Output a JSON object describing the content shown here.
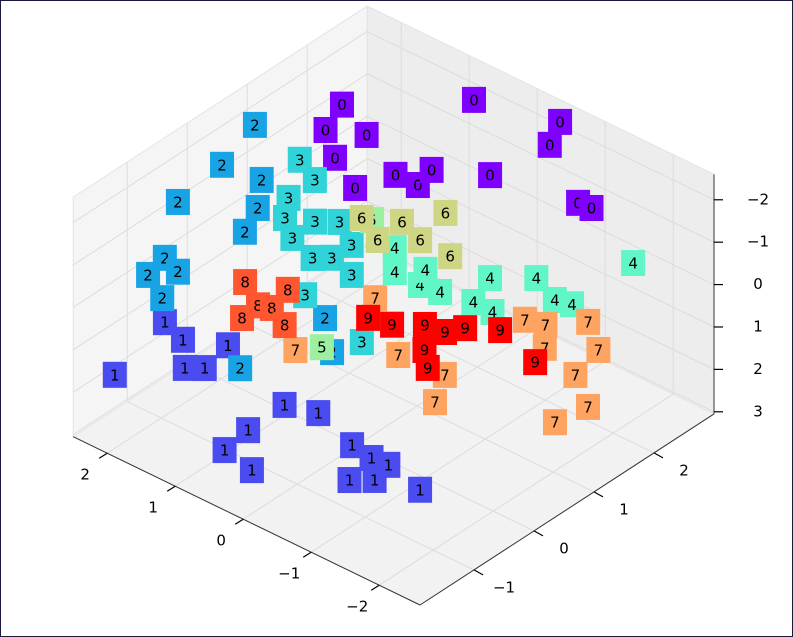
{
  "chart_data": {
    "type": "scatter3d",
    "xlim": [
      -2.6,
      2.5
    ],
    "ylim": [
      -1.9,
      3.0
    ],
    "zlim": [
      -2.6,
      3.05
    ],
    "z_inverted": true,
    "grid": true,
    "xticks": [
      2,
      1,
      0,
      {
        "value": -1,
        "label": "−1"
      },
      {
        "value": -2,
        "label": "−2"
      }
    ],
    "yticks": [
      {
        "value": -1,
        "label": "−1"
      },
      0,
      1,
      2
    ],
    "zticks": [
      {
        "value": -2,
        "label": "−2"
      },
      {
        "value": -1,
        "label": "−1"
      },
      0,
      1,
      2,
      3
    ],
    "series": [
      {
        "name": "0",
        "color": "#8000ff",
        "x": [
          1.6,
          1.41,
          1.0,
          0.97,
          0.41,
          0.24,
          -0.08,
          0.0,
          -0.56,
          0.55,
          -0.46,
          -0.67,
          -1.66,
          -1.84
        ],
        "y": [
          1.56,
          1.07,
          1.29,
          0.73,
          0.43,
          0.91,
          0.92,
          1.24,
          1.58,
          2.57,
          2.86,
          2.45,
          1.8,
          1.82
        ],
        "z": [
          -2.3,
          -2.3,
          -2.3,
          -2.3,
          -2.3,
          -2.3,
          -2.3,
          -2.3,
          -2.3,
          -2.3,
          -2.3,
          -2.3,
          -2.3,
          -2.3
        ]
      },
      {
        "name": "1",
        "color": "#4a4cf0",
        "x": [
          0.75,
          0.81,
          0.26,
          0.83,
          0.44,
          -0.26,
          -0.59,
          -0.69,
          -0.9,
          -0.82,
          -1.41,
          2.1,
          1.6,
          1.43,
          1.53,
          2.36,
          1.98
        ],
        "y": [
          -1.36,
          -0.9,
          -1.46,
          -0.27,
          -0.15,
          -0.38,
          -0.43,
          -0.91,
          -0.73,
          -0.41,
          -0.55,
          -1.66,
          -1.06,
          -0.92,
          -0.42,
          -0.53,
          -0.66
        ],
        "z": [
          2.5,
          2.5,
          2.5,
          2.5,
          2.5,
          2.5,
          2.5,
          2.5,
          2.5,
          2.5,
          2.5,
          1.5,
          1.5,
          1.5,
          1.5,
          1.5,
          1.5
        ]
      },
      {
        "name": "2",
        "color": "#18a4e4",
        "x": [
          2.51,
          2.27,
          1.74,
          2.16,
          1.21,
          1.41,
          2.37,
          2.29,
          2.08,
          1.87,
          1.13,
          0.79,
          0.29
        ],
        "y": [
          1.14,
          0.32,
          0.38,
          -0.54,
          -0.5,
          -0.06,
          -0.52,
          -0.89,
          -0.63,
          -1.13,
          -0.67,
          0.36,
          -0.09
        ],
        "z": [
          -1.5,
          -1.5,
          -1.5,
          -1.5,
          -1.5,
          -1.5,
          0,
          0,
          0,
          0,
          1.5,
          1,
          1
        ]
      },
      {
        "name": "3",
        "color": "#30d4d8",
        "x": [
          2.23,
          1.84,
          1.83,
          1.6,
          1.3,
          1.09,
          1.28,
          0.85,
          0.69,
          0.69,
          0.3,
          0.43,
          0.17
        ],
        "y": [
          1.57,
          1.38,
          0.93,
          0.61,
          0.77,
          0.94,
          0.37,
          0.22,
          0.36,
          0.69,
          0.25,
          -0.38,
          0.27
        ],
        "z": [
          -0.5,
          -0.5,
          -0.5,
          -0.5,
          -0.5,
          -0.5,
          -0.5,
          -0.5,
          -0.5,
          -0.5,
          -0.5,
          -0.5,
          1
        ]
      },
      {
        "name": "4",
        "color": "#60f6c8",
        "x": [
          0.56,
          0.25,
          -0.13,
          -0.39,
          -0.8,
          -0.63,
          -1.09,
          -1.02,
          -1.46,
          -1.66,
          -1.64,
          0.02
        ],
        "y": [
          1.26,
          0.91,
          0.9,
          0.94,
          1.03,
          1.5,
          1.02,
          1.83,
          1.64,
          1.7,
          2.74,
          1.16
        ],
        "z": [
          0,
          0,
          0,
          0,
          0,
          0,
          0,
          0,
          0,
          0,
          0,
          0
        ]
      },
      {
        "name": "5",
        "color": "#9cf0a0",
        "x": [
          0.84,
          0.44
        ],
        "y": [
          1.2,
          -0.09
        ],
        "z": [
          -0.5,
          1
        ]
      },
      {
        "name": "6",
        "color": "#ced683",
        "x": [
          0.79,
          0.4,
          0.15,
          0.37,
          -0.45,
          0.01
        ],
        "y": [
          0.97,
          1.2,
          1.64,
          0.76,
          1.04,
          1.06
        ],
        "z": [
          -0.8,
          -0.8,
          -0.8,
          -0.8,
          -0.8,
          -0.8
        ]
      },
      {
        "name": "7",
        "color": "#ffa460",
        "x": [
          0.9,
          0.9,
          -0.03,
          -0.68,
          -0.95,
          -0.64,
          -0.88,
          -1.17,
          -1.2,
          -1.65,
          -1.78,
          -2.3,
          -2.22
        ],
        "y": [
          1.32,
          -0.01,
          0.65,
          0.69,
          0.22,
          2.07,
          2.14,
          1.8,
          2.49,
          2.15,
          1.62,
          1.24,
          0.78
        ],
        "z": [
          1.5,
          1.5,
          1.5,
          1.5,
          1.5,
          1.5,
          1.5,
          1.5,
          1.5,
          1.5,
          1.5,
          1.5,
          1.5
        ]
      },
      {
        "name": "8",
        "color": "#ff5630",
        "x": [
          1.71,
          1.3,
          1.27,
          1.15,
          1.25,
          0.82
        ],
        "y": [
          0.07,
          -0.18,
          -0.48,
          -0.12,
          0.26,
          -0.28
        ],
        "z": [
          0.6,
          0.6,
          0.6,
          0.6,
          0.6,
          0.6
        ]
      },
      {
        "name": "9",
        "color": "#ff0000",
        "x": [
          0.14,
          -0.14,
          -0.52,
          -0.46,
          -0.72,
          -0.4,
          -0.84,
          0.43,
          -1.55
        ],
        "y": [
          0.74,
          0.97,
          1.21,
          0.6,
          0.36,
          1.01,
          1.43,
          0.67,
          1.21
        ],
        "z": [
          1,
          1,
          1,
          1,
          1,
          1,
          1,
          1,
          1
        ]
      }
    ]
  }
}
